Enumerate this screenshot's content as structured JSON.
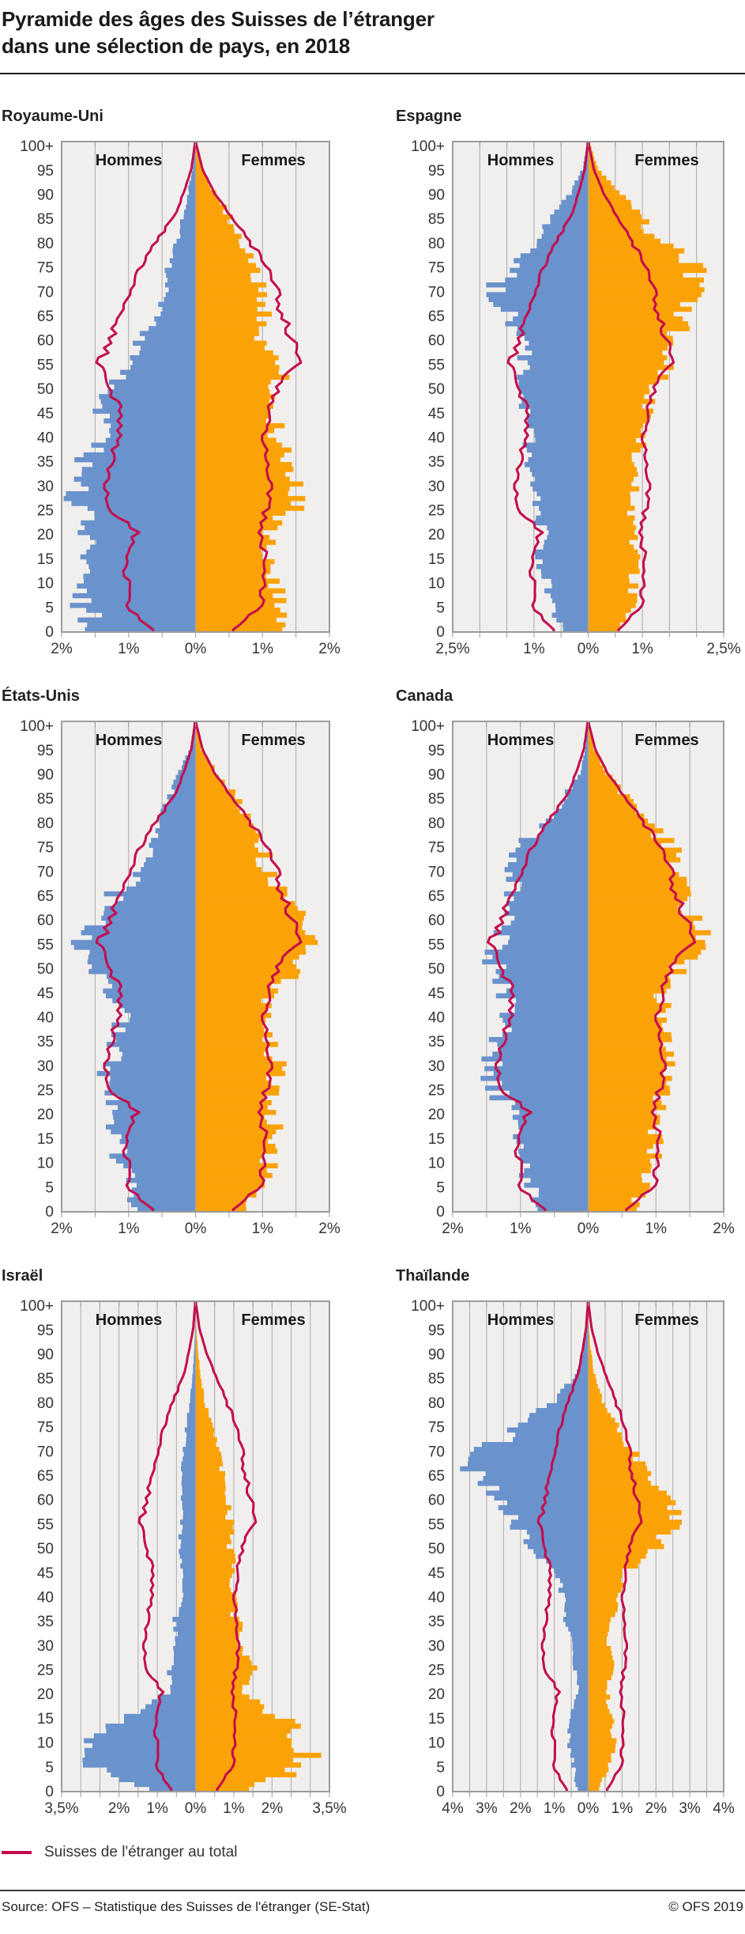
{
  "header": {
    "title_line1": "Pyramide des âges des Suisses de l’étranger",
    "title_line2": "dans une sélection de pays, en 2018"
  },
  "labels": {
    "men": "Hommes",
    "women": "Femmes"
  },
  "axis": {
    "age_top_label": "100+",
    "age_step": 5
  },
  "colors": {
    "men_bars": "#6a92cc",
    "women_bars": "#fba207",
    "total_line": "#c40a4c",
    "plot_bg": "#f0efed",
    "grid_line": "#aaaaa8",
    "plot_border": "#9b9b9b",
    "center_line": "#a3a3a3",
    "text_dark": "#1a1a1a",
    "text_axis": "#333333"
  },
  "legend": {
    "total_label": "Suisses de l'étranger au total"
  },
  "footer": {
    "source": "Source: OFS – Statistique des Suisses de l'étranger (SE-Stat)",
    "copyright": "© OFS 2019"
  },
  "chart_data": {
    "type": "population-pyramid",
    "unit": "percent of total, per single year of age",
    "ages": [
      0,
      5,
      10,
      15,
      20,
      25,
      30,
      35,
      40,
      45,
      50,
      55,
      60,
      65,
      70,
      75,
      80,
      85,
      90,
      95,
      100
    ],
    "total_line": {
      "name": "Suisses de l'étranger au total",
      "men": [
        0.65,
        1.02,
        1.02,
        1.08,
        0.88,
        1.28,
        1.32,
        1.25,
        1.15,
        1.12,
        1.3,
        1.42,
        1.25,
        1.12,
        1.0,
        0.8,
        0.58,
        0.33,
        0.17,
        0.06,
        0.01
      ],
      "women": [
        0.55,
        0.98,
        1.0,
        1.05,
        0.93,
        1.06,
        1.1,
        1.06,
        1.01,
        1.1,
        1.25,
        1.52,
        1.44,
        1.29,
        1.19,
        1.04,
        0.81,
        0.52,
        0.27,
        0.1,
        0.01
      ]
    },
    "countries": [
      {
        "name": "Royaume-Uni",
        "xmax": 2,
        "x_tick_labels": [
          {
            "v": -2,
            "t": "2%"
          },
          {
            "v": -1,
            "t": "1%"
          },
          {
            "v": 0,
            "t": "0%"
          },
          {
            "v": 1,
            "t": "1%"
          },
          {
            "v": 2,
            "t": "2%"
          }
        ],
        "men": [
          1.5,
          1.65,
          1.6,
          1.52,
          1.55,
          1.72,
          1.88,
          1.6,
          1.38,
          1.35,
          1.22,
          1.0,
          0.85,
          0.55,
          0.45,
          0.4,
          0.28,
          0.2,
          0.11,
          0.04,
          0.01
        ],
        "women": [
          1.2,
          1.25,
          1.2,
          1.15,
          1.0,
          1.45,
          1.5,
          1.4,
          1.2,
          1.22,
          1.25,
          1.3,
          1.0,
          1.0,
          0.95,
          0.9,
          0.7,
          0.5,
          0.28,
          0.1,
          0.02
        ]
      },
      {
        "name": "Espagne",
        "xmax": 2.5,
        "x_tick_labels": [
          {
            "v": -2.5,
            "t": "2,5%"
          },
          {
            "v": -1,
            "t": "1%"
          },
          {
            "v": 0,
            "t": "0%"
          },
          {
            "v": 1,
            "t": "1%"
          },
          {
            "v": 2.5,
            "t": "2,5%"
          }
        ],
        "men": [
          0.5,
          0.7,
          0.78,
          0.95,
          0.82,
          0.95,
          1.02,
          1.05,
          1.1,
          1.15,
          1.3,
          1.2,
          1.2,
          1.5,
          1.75,
          1.35,
          0.95,
          0.7,
          0.33,
          0.1,
          0.02
        ],
        "women": [
          0.55,
          0.8,
          0.85,
          0.9,
          0.85,
          0.8,
          0.85,
          0.9,
          1.0,
          1.1,
          1.25,
          1.5,
          1.6,
          1.8,
          2.0,
          1.9,
          1.35,
          0.95,
          0.55,
          0.17,
          0.04
        ]
      },
      {
        "name": "États-Unis",
        "xmax": 2,
        "x_tick_labels": [
          {
            "v": -2,
            "t": "2%"
          },
          {
            "v": -1,
            "t": "1%"
          },
          {
            "v": 0,
            "t": "0%"
          },
          {
            "v": 1,
            "t": "1%"
          },
          {
            "v": 2,
            "t": "2%"
          }
        ],
        "men": [
          0.85,
          1.0,
          1.1,
          1.25,
          1.2,
          1.32,
          1.3,
          1.2,
          1.1,
          1.25,
          1.55,
          1.72,
          1.32,
          1.2,
          0.78,
          0.7,
          0.55,
          0.38,
          0.25,
          0.08,
          0.02
        ],
        "women": [
          0.8,
          1.0,
          1.1,
          1.2,
          1.15,
          1.2,
          1.25,
          1.05,
          1.0,
          1.2,
          1.6,
          1.82,
          1.6,
          1.3,
          1.05,
          1.0,
          0.82,
          0.62,
          0.3,
          0.08,
          0.02
        ]
      },
      {
        "name": "Canada",
        "xmax": 2,
        "x_tick_labels": [
          {
            "v": -2,
            "t": "2%"
          },
          {
            "v": -1,
            "t": "1%"
          },
          {
            "v": 0,
            "t": "0%"
          },
          {
            "v": 1,
            "t": "1%"
          },
          {
            "v": 2,
            "t": "2%"
          }
        ],
        "men": [
          0.7,
          0.85,
          1.0,
          1.12,
          1.1,
          1.4,
          1.45,
          1.3,
          1.2,
          1.25,
          1.4,
          1.3,
          1.15,
          1.1,
          1.15,
          1.0,
          0.58,
          0.35,
          0.12,
          0.04,
          0.01
        ],
        "women": [
          0.65,
          0.85,
          0.95,
          1.0,
          1.05,
          1.1,
          1.2,
          1.15,
          1.1,
          1.1,
          1.35,
          1.65,
          1.5,
          1.4,
          1.3,
          1.2,
          0.85,
          0.55,
          0.28,
          0.08,
          0.02
        ]
      },
      {
        "name": "Israël",
        "xmax": 3.5,
        "x_tick_labels": [
          {
            "v": -3.5,
            "t": "3,5%"
          },
          {
            "v": -2,
            "t": "2%"
          },
          {
            "v": -1,
            "t": "1%"
          },
          {
            "v": 0,
            "t": "0%"
          },
          {
            "v": 1,
            "t": "1%"
          },
          {
            "v": 2,
            "t": "2%"
          },
          {
            "v": 3.5,
            "t": "3,5%"
          }
        ],
        "men": [
          1.2,
          2.8,
          2.6,
          1.9,
          0.7,
          0.7,
          0.5,
          0.55,
          0.3,
          0.38,
          0.42,
          0.38,
          0.35,
          0.35,
          0.3,
          0.25,
          0.15,
          0.08,
          0.04,
          0.01,
          0.0
        ],
        "women": [
          1.4,
          3.0,
          2.8,
          2.2,
          1.3,
          1.5,
          1.25,
          1.05,
          0.95,
          0.95,
          0.9,
          0.9,
          0.8,
          0.7,
          0.6,
          0.42,
          0.25,
          0.13,
          0.06,
          0.02,
          0.0
        ]
      },
      {
        "name": "Thaïlande",
        "xmax": 4,
        "x_tick_labels": [
          {
            "v": -4,
            "t": "4%"
          },
          {
            "v": -3,
            "t": "3%"
          },
          {
            "v": -2,
            "t": "2%"
          },
          {
            "v": -1,
            "t": "1%"
          },
          {
            "v": 0,
            "t": "0%"
          },
          {
            "v": 1,
            "t": "1%"
          },
          {
            "v": 2,
            "t": "2%"
          },
          {
            "v": 3,
            "t": "3%"
          },
          {
            "v": 4,
            "t": "4%"
          }
        ],
        "men": [
          0.3,
          0.45,
          0.6,
          0.55,
          0.3,
          0.4,
          0.5,
          0.65,
          0.75,
          1.0,
          1.7,
          2.2,
          2.8,
          3.4,
          3.0,
          1.9,
          1.0,
          0.4,
          0.15,
          0.03,
          0.01
        ],
        "women": [
          0.3,
          0.6,
          0.8,
          0.65,
          0.55,
          0.7,
          0.6,
          0.75,
          0.85,
          1.15,
          2.0,
          2.7,
          2.4,
          1.9,
          1.25,
          0.8,
          0.45,
          0.2,
          0.08,
          0.02,
          0.01
        ]
      }
    ]
  }
}
